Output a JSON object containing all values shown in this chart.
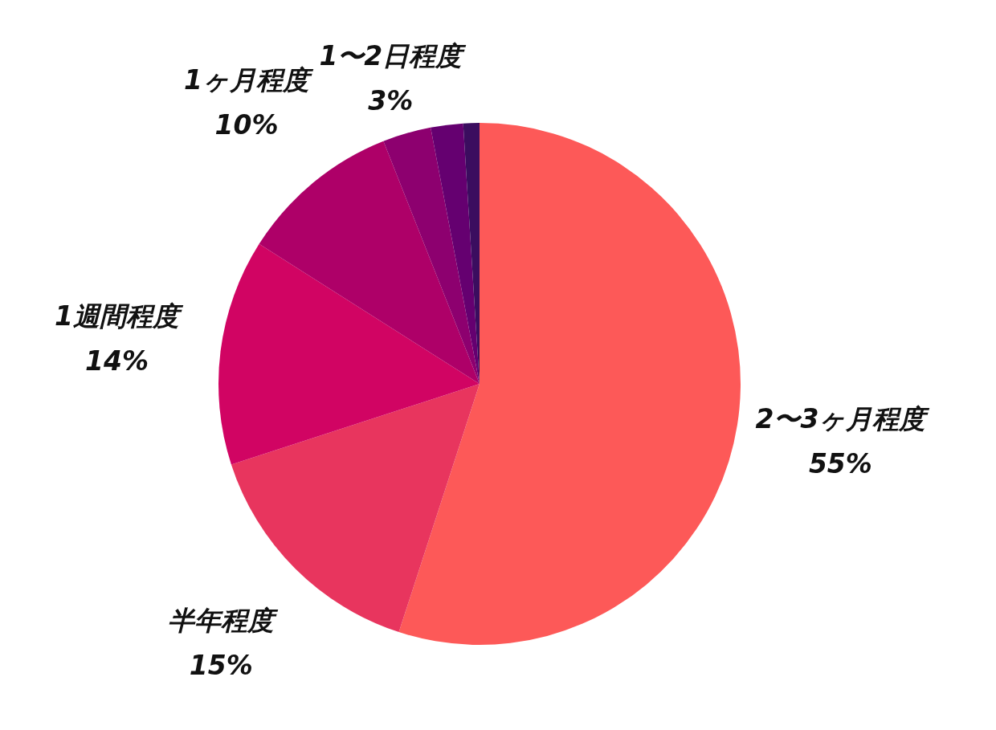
{
  "chart_data": {
    "type": "pie",
    "categories": [
      "2〜3ヶ月程度",
      "半年程度",
      "1週間程度",
      "1ヶ月程度",
      "1〜2日程度",
      null,
      null
    ],
    "values": [
      55,
      15,
      14,
      10,
      3,
      2,
      1
    ],
    "value_labels": [
      "55%",
      "15%",
      "14%",
      "10%",
      "3%",
      null,
      null
    ],
    "colors": [
      "#fd5958",
      "#e8355e",
      "#d10463",
      "#ae0068",
      "#8d006f",
      "#650070",
      "#3b0d5f"
    ]
  }
}
